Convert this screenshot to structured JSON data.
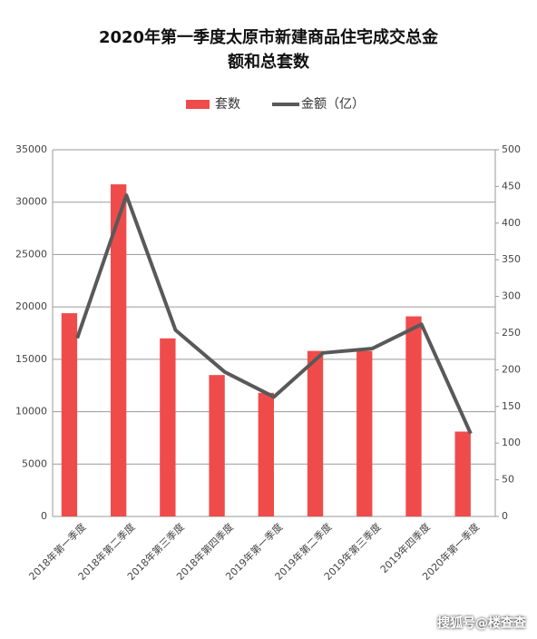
{
  "chart_data": {
    "type": "bar_line",
    "title": "2020年第一季度太原市新建商品住宅成交总金额和总套数",
    "categories": [
      "2018年第一季度",
      "2018年第二季度",
      "2018年第三季度",
      "2018年第四季度",
      "2019年第一季度",
      "2019年第二季度",
      "2019年第三季度",
      "2019年四季度",
      "2020年第一季度"
    ],
    "series": [
      {
        "name": "套数",
        "type": "bar",
        "color": "#f04b4b",
        "values": [
          19400,
          31700,
          17000,
          13500,
          11800,
          15800,
          15800,
          19100,
          8100
        ]
      },
      {
        "name": "金额（亿）",
        "type": "line",
        "axis": "y2",
        "color": "#595959",
        "values": [
          243,
          438,
          254,
          197,
          163,
          223,
          229,
          262,
          113
        ]
      }
    ],
    "ylim": [
      0,
      35000
    ],
    "yticks": [
      0,
      5000,
      10000,
      15000,
      20000,
      25000,
      30000,
      35000
    ],
    "y2lim": [
      0,
      500
    ],
    "y2ticks": [
      0,
      50,
      100,
      150,
      200,
      250,
      300,
      350,
      400,
      450,
      500
    ],
    "grid": true,
    "source": "搜狐号@楼查查"
  }
}
